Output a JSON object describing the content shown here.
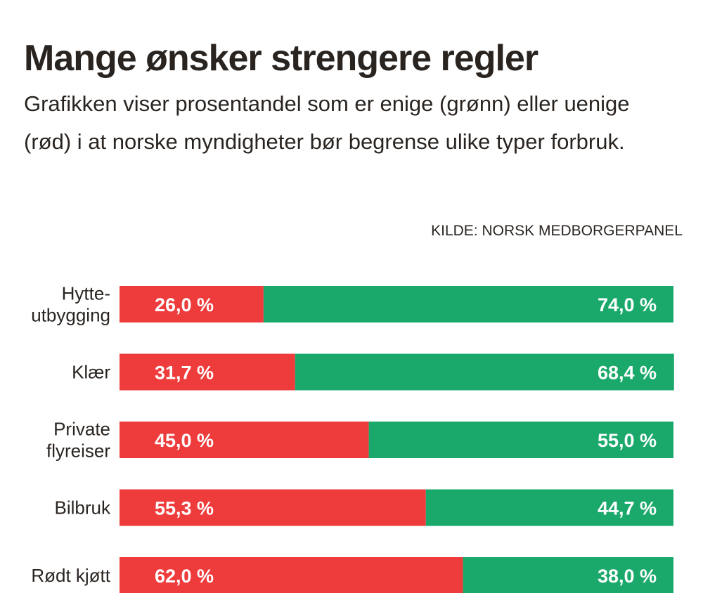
{
  "title": "Mange ønsker strengere regler",
  "subtitle": "Grafikken viser prosentandel som er enige (grønn) eller uenige (rød) i at norske myndigheter bør begrense ulike typer forbruk.",
  "source": "KILDE: NORSK MEDBORGERPANEL",
  "colors": {
    "disagree": "#ee3b3b",
    "agree": "#1aa96b",
    "text": "#2a2420"
  },
  "chart_data": {
    "type": "bar",
    "orientation": "horizontal",
    "stacked": true,
    "categories": [
      [
        "Hytte-",
        "utbygging"
      ],
      [
        "Klær"
      ],
      [
        "Private",
        "flyreiser"
      ],
      [
        "Bilbruk"
      ],
      [
        "Rødt kjøtt"
      ]
    ],
    "series": [
      {
        "key": "disagree",
        "color": "#ee3b3b",
        "values": [
          26.0,
          31.7,
          45.0,
          55.3,
          62.0
        ],
        "labels": [
          "26,0 %",
          "31,7 %",
          "45,0 %",
          "55,3 %",
          "62,0 %"
        ]
      },
      {
        "key": "agree",
        "color": "#1aa96b",
        "values": [
          74.0,
          68.4,
          55.0,
          44.7,
          38.0
        ],
        "labels": [
          "74,0 %",
          "68,4 %",
          "55,0 %",
          "44,7 %",
          "38,0 %"
        ]
      }
    ],
    "xlim": [
      0,
      100
    ],
    "grid": false,
    "legend": "none"
  }
}
